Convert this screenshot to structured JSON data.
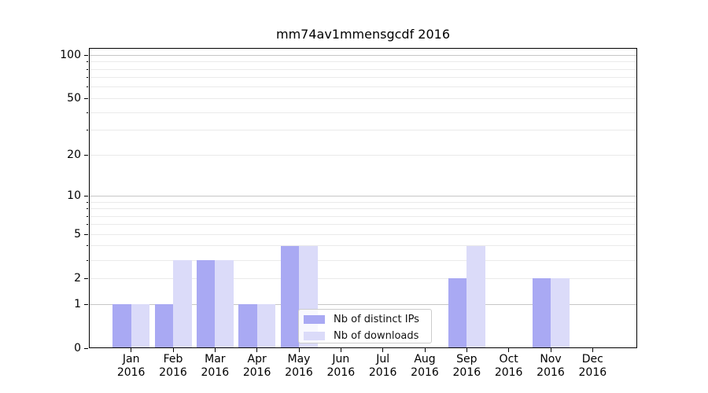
{
  "title": "mm74av1mmensgcdf 2016",
  "year_label": "2016",
  "legend": {
    "items": [
      {
        "label": "Nb of distinct IPs",
        "color": "#a9a9f3"
      },
      {
        "label": "Nb of downloads",
        "color": "#dbdbf9"
      }
    ]
  },
  "colors": {
    "bar_dark": "#a9a9f3",
    "bar_light": "#dbdbf9",
    "grid_major": "#c6c6c6",
    "grid_minor": "#eaeaea",
    "axis": "#000000",
    "background": "#ffffff"
  },
  "chart_data": {
    "type": "bar",
    "title": "mm74av1mmensgcdf 2016",
    "categories": [
      "Jan 2016",
      "Feb 2016",
      "Mar 2016",
      "Apr 2016",
      "May 2016",
      "Jun 2016",
      "Jul 2016",
      "Aug 2016",
      "Sep 2016",
      "Oct 2016",
      "Nov 2016",
      "Dec 2016"
    ],
    "months": [
      "Jan",
      "Feb",
      "Mar",
      "Apr",
      "May",
      "Jun",
      "Jul",
      "Aug",
      "Sep",
      "Oct",
      "Nov",
      "Dec"
    ],
    "series": [
      {
        "name": "Nb of distinct IPs",
        "color": "#a9a9f3",
        "values": [
          1,
          1,
          3,
          1,
          4,
          0,
          0,
          0,
          2,
          0,
          2,
          0
        ]
      },
      {
        "name": "Nb of downloads",
        "color": "#dbdbf9",
        "values": [
          1,
          3,
          3,
          1,
          4,
          0,
          0,
          0,
          4,
          0,
          2,
          0
        ]
      }
    ],
    "yscale": "log10(1+v)",
    "ylim": [
      0,
      112
    ],
    "yticks": [
      100,
      50,
      20,
      10,
      5,
      2,
      1,
      0
    ],
    "major_gridlines": [
      1,
      10,
      100
    ],
    "minor_gridlines": [
      2,
      3,
      4,
      5,
      6,
      7,
      8,
      9,
      20,
      30,
      40,
      50,
      60,
      70,
      80,
      90
    ],
    "grid": "horizontal",
    "legend_position": "lower center",
    "xlabel": "",
    "ylabel": ""
  }
}
